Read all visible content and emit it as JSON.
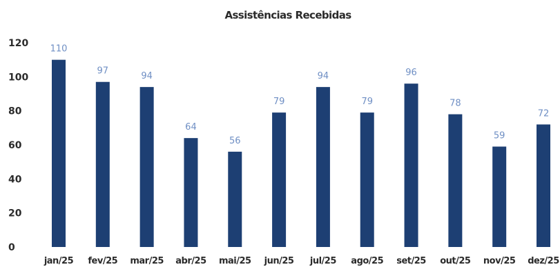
{
  "chart_data": {
    "type": "bar",
    "title": "Assistências Recebidas",
    "categories": [
      "jan/25",
      "fev/25",
      "mar/25",
      "abr/25",
      "mai/25",
      "jun/25",
      "jul/25",
      "ago/25",
      "set/25",
      "out/25",
      "nov/25",
      "dez/25"
    ],
    "values": [
      110,
      97,
      94,
      64,
      56,
      79,
      94,
      79,
      96,
      78,
      59,
      72
    ],
    "ylim": [
      0,
      120
    ],
    "yticks": [
      "0",
      "20",
      "40",
      "60",
      "80",
      "100",
      "120"
    ],
    "xlabel": "",
    "ylabel": "",
    "grid": false,
    "legend": "none",
    "bar_color": "#1d3f73",
    "label_color": "#6f8fc4"
  }
}
